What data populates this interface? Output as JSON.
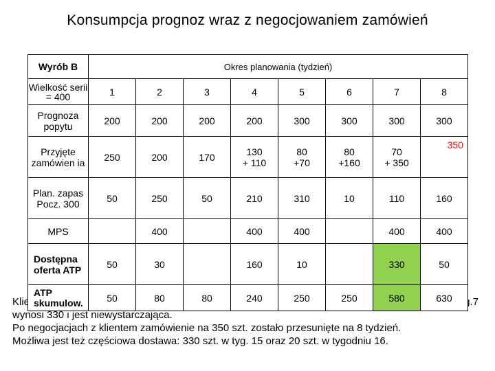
{
  "title": "Konsumpcja prognoz wraz z negocjowaniem zamówień",
  "table": {
    "product": "Wyrób B",
    "period_header": "Okres planowania (tydzień)",
    "batch_size": "Wielkość serii = 400",
    "weeks": [
      "1",
      "2",
      "3",
      "4",
      "5",
      "6",
      "7",
      "8"
    ],
    "rows": [
      {
        "label": "Prognoza popytu",
        "values": [
          "200",
          "200",
          "200",
          "200",
          "300",
          "300",
          "300",
          "300"
        ]
      },
      {
        "label": "Przyjęte zamówien ia",
        "values": [
          "250",
          "200",
          "170",
          "130\n+ 110",
          "80\n+70",
          "80\n+160",
          "70\n+ 350",
          "350"
        ]
      },
      {
        "label": "Plan. zapas Pocz. 300",
        "values": [
          "50",
          "250",
          "50",
          "210",
          "310",
          "10",
          "110",
          "160"
        ]
      },
      {
        "label": "MPS",
        "values": [
          "",
          "400",
          "",
          "400",
          "400",
          "",
          "400",
          "400"
        ]
      },
      {
        "label": "Dostępna oferta ATP",
        "values": [
          "50",
          "30",
          "",
          "160",
          "10",
          "",
          "330",
          "50"
        ]
      },
      {
        "label": "ATP skumulow.",
        "values": [
          "50",
          "80",
          "80",
          "240",
          "250",
          "250",
          "580",
          "630"
        ]
      }
    ]
  },
  "notes": {
    "line1_left": "Klie",
    "line1_right": "g.7",
    "line2": "wynosi 330 i jest niewystarczająca.",
    "line3": "Po negocjacjach z klientem zamówienie na 350 szt. zostało przesunięte na 8 tydzień.",
    "line4": "Możliwa jest też częściowa dostawa: 330 szt. w tyg. 15 oraz 20 szt. w tygodniu 16."
  },
  "colors": {
    "highlight": "#92d050",
    "red_text": "#ff0000"
  }
}
